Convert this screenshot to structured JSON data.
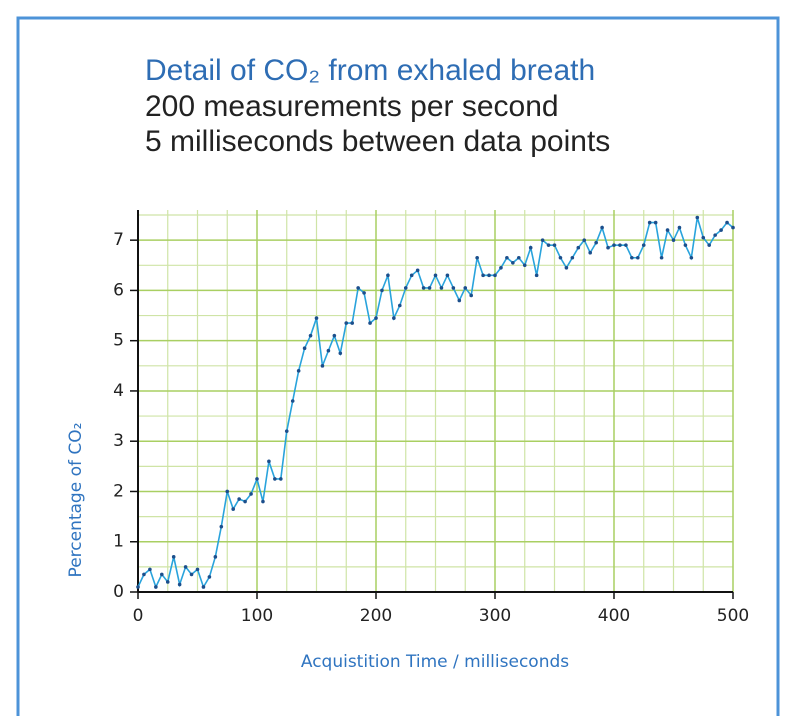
{
  "chart_data": {
    "type": "line",
    "title": [
      "Detail of CO₂ from exhaled breath",
      "200 measurements per second",
      "5 milliseconds between data points"
    ],
    "x_label": "Acquistition Time / milliseconds",
    "y_label": "Percentage of CO₂",
    "x": [
      0,
      5,
      10,
      15,
      20,
      25,
      30,
      35,
      40,
      45,
      50,
      55,
      60,
      65,
      70,
      75,
      80,
      85,
      90,
      95,
      100,
      105,
      110,
      115,
      120,
      125,
      130,
      135,
      140,
      145,
      150,
      155,
      160,
      165,
      170,
      175,
      180,
      185,
      190,
      195,
      200,
      205,
      210,
      215,
      220,
      225,
      230,
      235,
      240,
      245,
      250,
      255,
      260,
      265,
      270,
      275,
      280,
      285,
      290,
      295,
      300,
      305,
      310,
      315,
      320,
      325,
      330,
      335,
      340,
      345,
      350,
      355,
      360,
      365,
      370,
      375,
      380,
      385,
      390,
      395,
      400,
      405,
      410,
      415,
      420,
      425,
      430,
      435,
      440,
      445,
      450,
      455,
      460,
      465,
      470,
      475,
      480,
      485,
      490,
      495,
      500
    ],
    "values": [
      0.1,
      0.35,
      0.45,
      0.1,
      0.35,
      0.2,
      0.7,
      0.15,
      0.5,
      0.35,
      0.45,
      0.1,
      0.3,
      0.7,
      1.3,
      2.0,
      1.65,
      1.85,
      1.8,
      1.95,
      2.25,
      1.8,
      2.6,
      2.25,
      2.25,
      3.2,
      3.8,
      4.4,
      4.85,
      5.1,
      5.45,
      4.5,
      4.8,
      5.1,
      4.75,
      5.35,
      5.35,
      6.05,
      5.95,
      5.35,
      5.45,
      6.0,
      6.3,
      5.45,
      5.7,
      6.05,
      6.3,
      6.4,
      6.05,
      6.05,
      6.3,
      6.05,
      6.3,
      6.05,
      5.8,
      6.05,
      5.9,
      6.65,
      6.3,
      6.3,
      6.3,
      6.45,
      6.65,
      6.55,
      6.65,
      6.5,
      6.85,
      6.3,
      7.0,
      6.9,
      6.9,
      6.65,
      6.45,
      6.65,
      6.85,
      7.0,
      6.75,
      6.95,
      7.25,
      6.85,
      6.9,
      6.9,
      6.9,
      6.65,
      6.65,
      6.9,
      7.35,
      7.35,
      6.65,
      7.2,
      7.0,
      7.25,
      6.9,
      6.65,
      7.45,
      7.05,
      6.9,
      7.1,
      7.2,
      7.35,
      7.25
    ],
    "color": "#29a3dc",
    "marker_color": "#1c4f8c",
    "xlim": [
      0,
      500
    ],
    "xticks": [
      0,
      100,
      200,
      300,
      400,
      500
    ],
    "ylim": [
      0,
      7.6
    ],
    "yticks": [
      0,
      1,
      2,
      3,
      4,
      5,
      6,
      7
    ],
    "grid": true
  }
}
